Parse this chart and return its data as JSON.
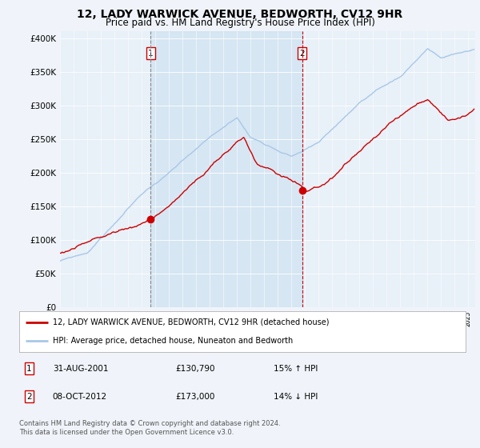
{
  "title": "12, LADY WARWICK AVENUE, BEDWORTH, CV12 9HR",
  "subtitle": "Price paid vs. HM Land Registry's House Price Index (HPI)",
  "ylabel_ticks": [
    "£0",
    "£50K",
    "£100K",
    "£150K",
    "£200K",
    "£250K",
    "£300K",
    "£350K",
    "£400K"
  ],
  "ytick_vals": [
    0,
    50000,
    100000,
    150000,
    200000,
    250000,
    300000,
    350000,
    400000
  ],
  "ylim": [
    0,
    410000
  ],
  "xlim_start": 1995.0,
  "xlim_end": 2025.5,
  "sale1_x": 2001.67,
  "sale1_y": 130790,
  "sale2_x": 2012.78,
  "sale2_y": 173000,
  "hpi_color": "#a8c8e8",
  "price_color": "#cc0000",
  "vline1_color": "#888888",
  "vline2_color": "#cc0000",
  "fill_color": "#c8dff0",
  "fill_alpha": 0.55,
  "background_color": "#f0f4fa",
  "plot_bg_color": "#e8f0f8",
  "legend_entry1": "12, LADY WARWICK AVENUE, BEDWORTH, CV12 9HR (detached house)",
  "legend_entry2": "HPI: Average price, detached house, Nuneaton and Bedworth",
  "table_row1": [
    "1",
    "31-AUG-2001",
    "£130,790",
    "15% ↑ HPI"
  ],
  "table_row2": [
    "2",
    "08-OCT-2012",
    "£173,000",
    "14% ↓ HPI"
  ],
  "footnote": "Contains HM Land Registry data © Crown copyright and database right 2024.\nThis data is licensed under the Open Government Licence v3.0.",
  "title_fontsize": 10,
  "subtitle_fontsize": 8.5
}
